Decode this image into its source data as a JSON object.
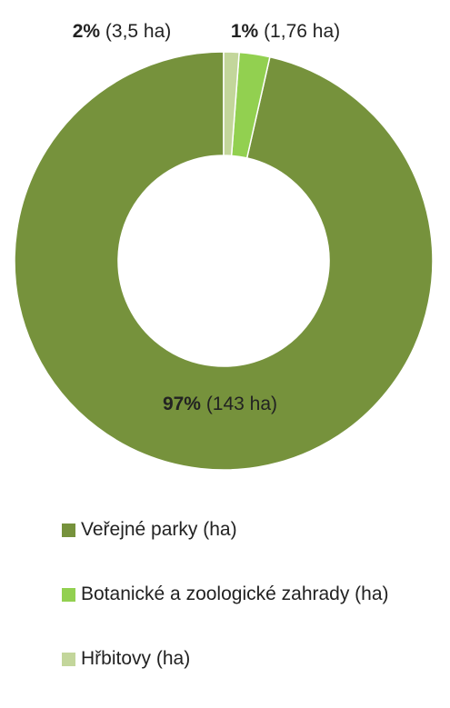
{
  "chart_data": {
    "type": "pie",
    "variant": "donut",
    "categories": [
      "Veřejné parky (ha)",
      "Botanické a zoologické zahrady (ha)",
      "Hřbitovy (ha)"
    ],
    "values": [
      143,
      3.5,
      1.76
    ],
    "percent_labels": [
      "97%",
      "2%",
      "1%"
    ],
    "value_labels": [
      "(143 ha)",
      "(3,5 ha)",
      "(1,76 ha)"
    ],
    "colors": [
      "#76923c",
      "#92d050",
      "#c3d69b"
    ],
    "legend_position": "bottom",
    "title": ""
  }
}
